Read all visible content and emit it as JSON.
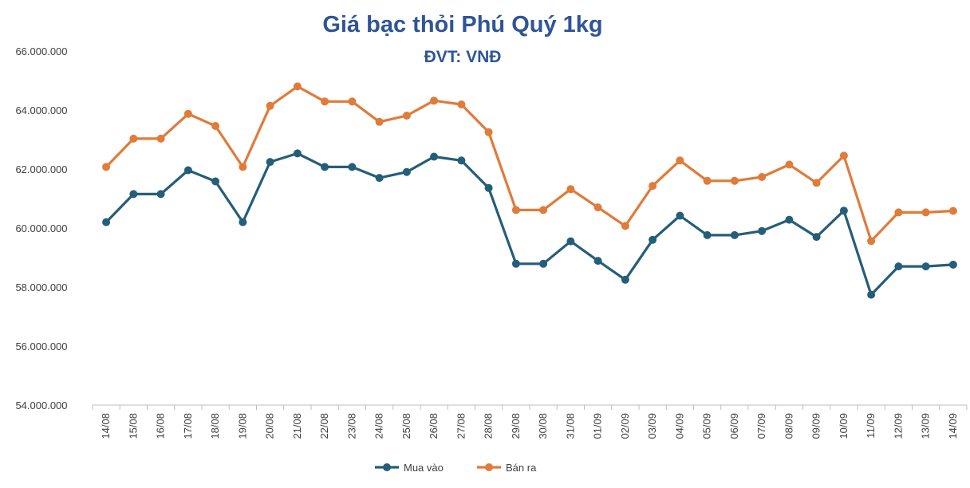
{
  "chart_data": {
    "type": "line",
    "title": "Giá bạc thỏi Phú Quý 1kg",
    "subtitle": "ĐVT: VNĐ",
    "categories": [
      "14/08",
      "15/08",
      "16/08",
      "17/08",
      "18/08",
      "19/08",
      "20/08",
      "21/08",
      "22/08",
      "23/08",
      "24/08",
      "25/08",
      "26/08",
      "27/08",
      "28/08",
      "29/08",
      "30/08",
      "31/08",
      "01/09",
      "02/09",
      "03/09",
      "04/09",
      "05/09",
      "06/09",
      "07/09",
      "08/09",
      "09/09",
      "10/09",
      "11/09",
      "12/09",
      "13/09",
      "14/09"
    ],
    "ylim": [
      54000000,
      66000000
    ],
    "yticks": [
      54000000,
      56000000,
      58000000,
      60000000,
      62000000,
      64000000,
      66000000
    ],
    "ytick_labels": [
      "54.000.000",
      "56.000.000",
      "58.000.000",
      "60.000.000",
      "62.000.000",
      "64.000.000",
      "66.000.000"
    ],
    "grid": false,
    "legend_position": "bottom",
    "series": [
      {
        "name": "Mua vào",
        "color": "#255e79",
        "values": [
          60200000,
          61150000,
          61150000,
          61960000,
          61580000,
          60200000,
          62240000,
          62530000,
          62070000,
          62070000,
          61700000,
          61900000,
          62420000,
          62290000,
          61360000,
          58790000,
          58790000,
          59550000,
          58890000,
          58250000,
          59600000,
          60420000,
          59760000,
          59760000,
          59900000,
          60280000,
          59700000,
          60590000,
          57740000,
          58700000,
          58700000,
          58760000
        ]
      },
      {
        "name": "Bán ra",
        "color": "#e07b39",
        "values": [
          62070000,
          63030000,
          63030000,
          63870000,
          63460000,
          62070000,
          64140000,
          64800000,
          64290000,
          64290000,
          63600000,
          63810000,
          64320000,
          64190000,
          63250000,
          60610000,
          60610000,
          61320000,
          60700000,
          60070000,
          61430000,
          62290000,
          61600000,
          61600000,
          61730000,
          62150000,
          61530000,
          62450000,
          59560000,
          60530000,
          60530000,
          60580000
        ]
      }
    ]
  }
}
